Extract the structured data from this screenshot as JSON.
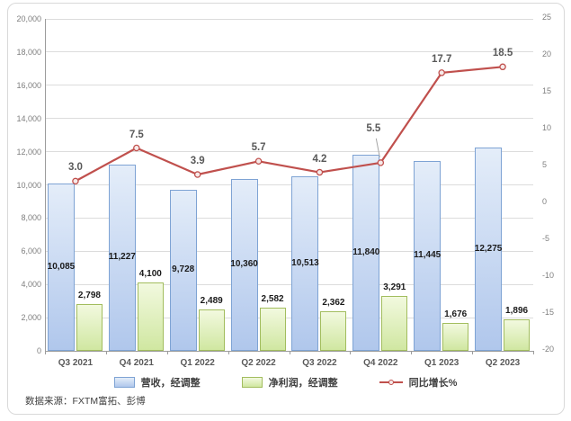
{
  "chart_data": {
    "type": "combo",
    "title": "",
    "categories": [
      "Q3 2021",
      "Q4 2021",
      "Q1 2022",
      "Q2 2022",
      "Q3 2022",
      "Q4 2022",
      "Q1 2023",
      "Q2 2023"
    ],
    "series": [
      {
        "name": "营收，经调整",
        "type": "bar",
        "axis": "left",
        "values": [
          10085,
          11227,
          9728,
          10360,
          10513,
          11840,
          11445,
          12275
        ],
        "labels": [
          "10,085",
          "11,227",
          "9,728",
          "10,360",
          "10,513",
          "11,840",
          "11,445",
          "12,275"
        ],
        "label_position": "inside-center",
        "fill_top": "#e4edf9",
        "fill_bottom": "#b0c7ec",
        "border": "#7ea3d4"
      },
      {
        "name": "净利润，经调整",
        "type": "bar",
        "axis": "left",
        "values": [
          2798,
          4100,
          2489,
          2582,
          2362,
          3291,
          1676,
          1896
        ],
        "labels": [
          "2,798",
          "4,100",
          "2,489",
          "2,582",
          "2,362",
          "3,291",
          "1,676",
          "1,896"
        ],
        "label_position": "outside-end",
        "fill_top": "#f2f9df",
        "fill_bottom": "#d0e7a1",
        "border": "#a2bd5e"
      },
      {
        "name": "同比增长%",
        "type": "line",
        "axis": "right",
        "values": [
          3.0,
          7.5,
          3.9,
          5.7,
          4.2,
          5.5,
          17.7,
          18.5
        ],
        "labels": [
          "3.0",
          "7.5",
          "3.9",
          "5.7",
          "4.2",
          "5.5",
          "17.7",
          "18.5"
        ],
        "color": "#c0504d",
        "marker_fill": "#f6eae9",
        "callout_label_index": 5
      }
    ],
    "y_left": {
      "min": 0,
      "max": 20000,
      "step": 2000,
      "tick_labels": [
        "0",
        "2,000",
        "4,000",
        "6,000",
        "8,000",
        "10,000",
        "12,000",
        "14,000",
        "16,000",
        "18,000",
        "20,000"
      ]
    },
    "y_right": {
      "min": -20,
      "max": 25,
      "step": 5,
      "tick_labels": [
        "-20",
        "-15",
        "-10",
        "-5",
        "0",
        "5",
        "10",
        "15",
        "20",
        "25"
      ]
    },
    "grid": true,
    "legend_position": "bottom"
  },
  "source_note": "数据来源：FXTM富拓、彭博",
  "colors": {
    "background": "#ffffff",
    "frame_border": "#d9d9d9",
    "grid": "#dcdcdc",
    "axis": "#9c9c9c",
    "tick_text": "#7f7f7f",
    "category_text": "#595959",
    "bar_label_text": "#1a1a1a",
    "line_label_text": "#595959",
    "line_red": "#c0504d"
  }
}
